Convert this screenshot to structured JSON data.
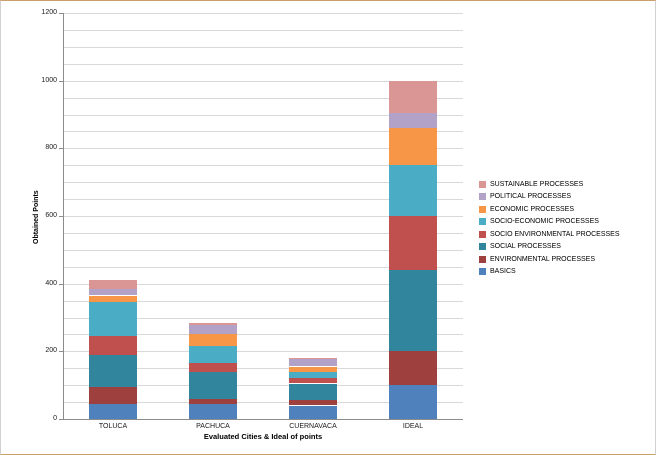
{
  "frame": {
    "border_side_color": "#d0d0d0",
    "border_topbottom_color": "#c9a06a",
    "background": "#ffffff"
  },
  "chart_data": {
    "type": "bar",
    "subtype": "stacked-column",
    "title": "",
    "xlabel": "Evaluated Cities & Ideal of points",
    "ylabel": "Obtained Points",
    "ylim": [
      0,
      1200
    ],
    "ytick_interval": 200,
    "gridline_interval": 50,
    "grid": true,
    "legend_position": "right",
    "legend_order": "reversed",
    "categories": [
      "TOLUCA",
      "PACHUCA",
      "CUERNAVACA",
      "IDEAL"
    ],
    "series": [
      {
        "name": "BASICS",
        "color": "#4F81BD",
        "values": [
          45,
          45,
          40,
          100
        ]
      },
      {
        "name": "ENVIRONMENTAL  PROCESSES",
        "color": "#9E413E",
        "values": [
          50,
          15,
          15,
          100
        ]
      },
      {
        "name": "SOCIAL PROCESSES",
        "color": "#31859C",
        "values": [
          95,
          80,
          50,
          240
        ]
      },
      {
        "name": "SOCIO ENVIRONMENTAL  PROCESSES",
        "color": "#C0504D",
        "values": [
          55,
          25,
          15,
          160
        ]
      },
      {
        "name": "SOCIO-ECONOMIC  PROCESSES",
        "color": "#4BACC6",
        "values": [
          100,
          50,
          20,
          150
        ]
      },
      {
        "name": "ECONOMIC PROCESSES",
        "color": "#F79646",
        "values": [
          20,
          35,
          15,
          110
        ]
      },
      {
        "name": "POLITICAL PROCESSES",
        "color": "#B3A2C7",
        "values": [
          20,
          28,
          22,
          45
        ]
      },
      {
        "name": "SUSTAINABLE PROCESSES",
        "color": "#D99694",
        "values": [
          25,
          5,
          3,
          95
        ]
      }
    ],
    "totals": {
      "TOLUCA": 410,
      "PACHUCA": 283,
      "CUERNAVACA": 180,
      "IDEAL": 1000
    }
  }
}
